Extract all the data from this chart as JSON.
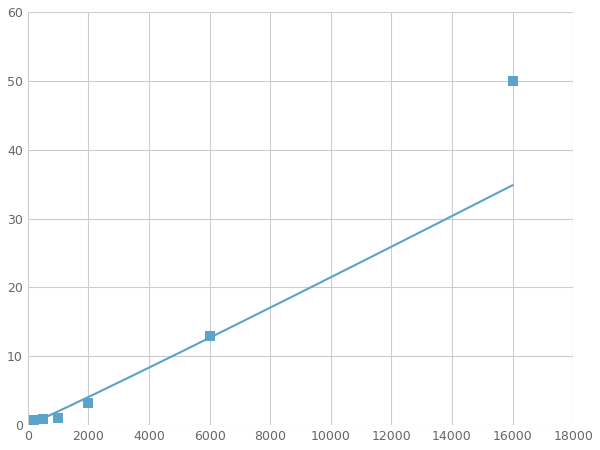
{
  "x_points": [
    200,
    500,
    1000,
    2000,
    6000,
    16000
  ],
  "y_points": [
    0.7,
    0.85,
    1.1,
    3.2,
    13.0,
    50.0
  ],
  "line_color": "#5BA3C9",
  "marker_color": "#5BA3C9",
  "marker_size": 5,
  "line_width": 1.5,
  "xlim": [
    0,
    18000
  ],
  "ylim": [
    0,
    60
  ],
  "xticks": [
    0,
    2000,
    4000,
    6000,
    8000,
    10000,
    12000,
    14000,
    16000,
    18000
  ],
  "yticks": [
    0,
    10,
    20,
    30,
    40,
    50,
    60
  ],
  "grid_color": "#cccccc",
  "grid_linewidth": 0.8,
  "bg_color": "#ffffff",
  "fig_bg_color": "#ffffff"
}
